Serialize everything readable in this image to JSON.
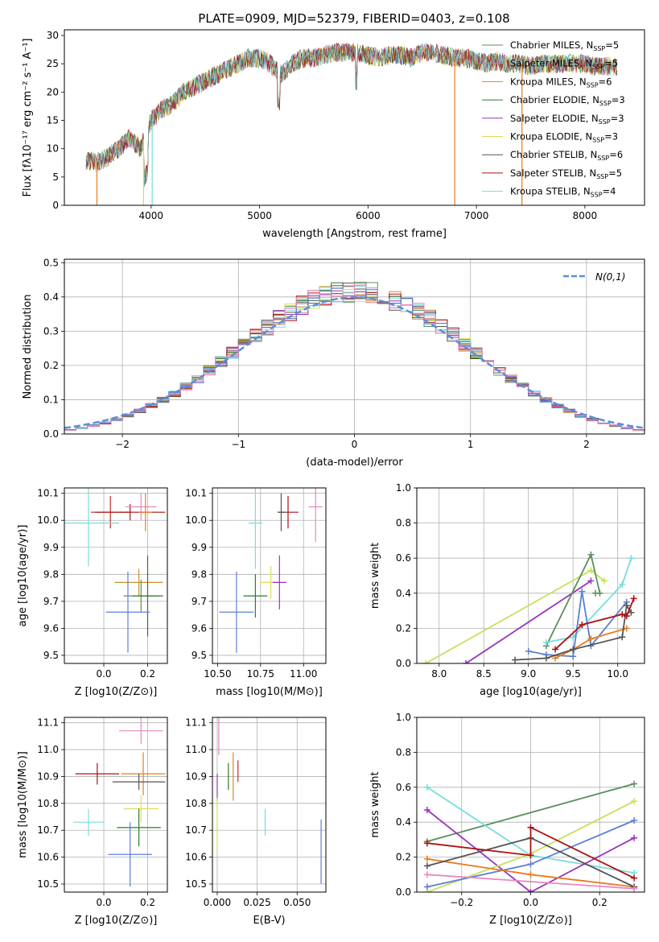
{
  "figure_title": "PLATE=0909, MJD=52379, FIBERID=0403, z=0.108",
  "colors": [
    "#5b8f5b",
    "#e07f7a",
    "#c98f2a",
    "#2e7a2e",
    "#9933bb",
    "#dddd55",
    "#555555",
    "#aa1111",
    "#77dddd"
  ],
  "chart_data": [
    {
      "id": "spectrum",
      "type": "line",
      "title": "PLATE=0909, MJD=52379, FIBERID=0403, z=0.108",
      "xlabel": "wavelength [Angstrom, rest frame]",
      "ylabel": "Flux [fλ10⁻¹⁷ erg cm⁻² s⁻¹ A⁻¹]",
      "xlim": [
        3200,
        8550
      ],
      "ylim": [
        0,
        31
      ],
      "xticks": [
        "4000",
        "5000",
        "6000",
        "7000",
        "8000"
      ],
      "yticks": [
        "0",
        "5",
        "10",
        "15",
        "20",
        "25",
        "30"
      ],
      "legend_position": "right",
      "series": [
        {
          "name": "Chabrier MILES, N_SSP=5",
          "color": "#5b8f5b"
        },
        {
          "name": "Salpeter MILES, N_SSP=5",
          "color": "#e07f7a"
        },
        {
          "name": "Kroupa MILES, N_SSP=6",
          "color": "#c98f2a"
        },
        {
          "name": "Chabrier ELODIE, N_SSP=3",
          "color": "#2e7a2e"
        },
        {
          "name": "Salpeter ELODIE, N_SSP=3",
          "color": "#9933bb"
        },
        {
          "name": "Kroupa ELODIE, N_SSP=3",
          "color": "#dddd55"
        },
        {
          "name": "Chabrier STELIB, N_SSP=6",
          "color": "#555555"
        },
        {
          "name": "Salpeter STELIB, N_SSP=5",
          "color": "#aa1111"
        },
        {
          "name": "Kroupa STELIB, N_SSP=4",
          "color": "#77dddd"
        }
      ],
      "continuum": {
        "x": [
          3400,
          3500,
          3600,
          3700,
          3800,
          3900,
          4000,
          4100,
          4200,
          4300,
          4400,
          4500,
          4600,
          4700,
          4800,
          4900,
          5000,
          5100,
          5200,
          5300,
          5400,
          5500,
          5600,
          5700,
          5800,
          5900,
          6000,
          6100,
          6200,
          6300,
          6400,
          6500,
          6600,
          6700,
          6800,
          6900,
          7000,
          7100,
          7200,
          7300,
          7400,
          7500,
          7600,
          7700,
          7800,
          7900,
          8000,
          8100,
          8200,
          8300
        ],
        "y": [
          8,
          7.5,
          8.5,
          10,
          12,
          10,
          15,
          17,
          18,
          20,
          21,
          22,
          23,
          24,
          25,
          26,
          26,
          25,
          23,
          25,
          26,
          26,
          26.5,
          27,
          27,
          27,
          26.5,
          26,
          26.5,
          26.5,
          26,
          27,
          27,
          26.5,
          26,
          26,
          25.5,
          25,
          25.5,
          25,
          25,
          24.5,
          25,
          25,
          25,
          25,
          25,
          24.5,
          24.5,
          24.5
        ]
      }
    },
    {
      "id": "residuals",
      "type": "histogram",
      "xlabel": "(data-model)/error",
      "ylabel": "Normed distribution",
      "xlim": [
        -2.5,
        2.5
      ],
      "ylim": [
        0,
        0.51
      ],
      "xticks": [
        "−2",
        "−1",
        "0",
        "1",
        "2"
      ],
      "yticks": [
        "0.0",
        "0.1",
        "0.2",
        "0.3",
        "0.4",
        "0.5"
      ],
      "legend": "N(0,1)",
      "legend_position": "top-right"
    },
    {
      "id": "age-vs-Z",
      "type": "scatter",
      "xlabel": "Z [log10(Z/Z⊙)]",
      "ylabel": "age  [log10(age/yr)]",
      "xlim": [
        -0.18,
        0.29
      ],
      "ylim": [
        9.47,
        10.12
      ],
      "xticks": [
        "0.0",
        "0.2"
      ],
      "yticks": [
        "9.5",
        "9.6",
        "9.7",
        "9.8",
        "9.9",
        "10.0",
        "10.1"
      ],
      "points": [
        {
          "x": 0.03,
          "y": 10.03,
          "xerr": 0.09,
          "yerr": 0.06,
          "color": "#c62828"
        },
        {
          "x": 0.12,
          "y": 10.03,
          "xerr": 0.16,
          "yerr": 0.03,
          "color": "#aa1111"
        },
        {
          "x": 0.17,
          "y": 10.05,
          "xerr": 0.07,
          "yerr": 0.05,
          "color": "#e887c0"
        },
        {
          "x": 0.19,
          "y": 10.03,
          "xerr": 0.03,
          "yerr": 0.07,
          "color": "#e87c1e"
        },
        {
          "x": -0.07,
          "y": 9.99,
          "xerr": 0.14,
          "yerr": 0.16,
          "color": "#77dddd"
        },
        {
          "x": 0.16,
          "y": 9.77,
          "xerr": 0.11,
          "yerr": 0.05,
          "color": "#c98f2a"
        },
        {
          "x": 0.17,
          "y": 9.72,
          "xerr": 0.08,
          "yerr": 0.06,
          "color": "#5b8f5b"
        },
        {
          "x": 0.2,
          "y": 9.72,
          "xerr": 0.07,
          "yerr": 0.15,
          "color": "#2e7a2e"
        },
        {
          "x": 0.11,
          "y": 9.66,
          "xerr": 0.1,
          "yerr": 0.15,
          "color": "#5b7fd6"
        }
      ]
    },
    {
      "id": "age-vs-mass",
      "type": "scatter",
      "xlabel": "mass [log10(M/M⊙)]",
      "ylabel": "",
      "xlim": [
        10.47,
        11.13
      ],
      "ylim": [
        9.47,
        10.12
      ],
      "xticks": [
        "10.50",
        "10.75",
        "11.00"
      ],
      "yticks": [
        "9.5",
        "9.6",
        "9.7",
        "9.8",
        "9.9",
        "10.0",
        "10.1"
      ],
      "points": [
        {
          "x": 10.91,
          "y": 10.03,
          "xerr": 0.06,
          "yerr": 0.06,
          "color": "#aa1111"
        },
        {
          "x": 10.87,
          "y": 10.03,
          "xerr": 0.02,
          "yerr": 0.07,
          "color": "#555555"
        },
        {
          "x": 11.07,
          "y": 10.05,
          "xerr": 0.04,
          "yerr": 0.13,
          "color": "#e887c0"
        },
        {
          "x": 10.72,
          "y": 9.99,
          "xerr": 0.04,
          "yerr": 0.17,
          "color": "#77dddd"
        },
        {
          "x": 10.81,
          "y": 9.77,
          "xerr": 0.06,
          "yerr": 0.06,
          "color": "#dddd55"
        },
        {
          "x": 10.86,
          "y": 9.77,
          "xerr": 0.04,
          "yerr": 0.1,
          "color": "#9933bb"
        },
        {
          "x": 10.72,
          "y": 9.72,
          "xerr": 0.07,
          "yerr": 0.08,
          "color": "#2e7a2e"
        },
        {
          "x": 10.61,
          "y": 9.66,
          "xerr": 0.1,
          "yerr": 0.15,
          "color": "#5b7fd6"
        }
      ]
    },
    {
      "id": "weight-vs-age",
      "type": "line",
      "xlabel": "age  [log10(age/yr)]",
      "ylabel": "mass weight",
      "xlim": [
        7.75,
        10.3
      ],
      "ylim": [
        0,
        1.0
      ],
      "xticks": [
        "8.0",
        "8.5",
        "9.0",
        "9.5",
        "10.0"
      ],
      "yticks": [
        "0.0",
        "0.2",
        "0.4",
        "0.6",
        "0.8",
        "1.0"
      ],
      "series": [
        {
          "color": "#c8e05a",
          "x": [
            7.85,
            9.7,
            9.85
          ],
          "y": [
            0.0,
            0.53,
            0.47
          ]
        },
        {
          "color": "#9933bb",
          "x": [
            8.3,
            9.7
          ],
          "y": [
            0.0,
            0.47
          ]
        },
        {
          "color": "#5b8f5b",
          "x": [
            9.2,
            9.7,
            9.8,
            9.75
          ],
          "y": [
            0.1,
            0.62,
            0.4,
            0.4
          ]
        },
        {
          "color": "#77dddd",
          "x": [
            9.2,
            9.5,
            10.05,
            10.15
          ],
          "y": [
            0.12,
            0.15,
            0.45,
            0.6
          ]
        },
        {
          "color": "#5b7fd6",
          "x": [
            9.0,
            9.2,
            9.5,
            9.6,
            9.7,
            10.1
          ],
          "y": [
            0.07,
            0.05,
            0.04,
            0.41,
            0.1,
            0.35
          ]
        },
        {
          "color": "#e87c1e",
          "x": [
            9.3,
            9.5,
            9.7,
            10.1
          ],
          "y": [
            0.03,
            0.08,
            0.14,
            0.2
          ]
        },
        {
          "color": "#555555",
          "x": [
            8.85,
            9.2,
            9.5,
            10.05,
            10.1,
            10.15
          ],
          "y": [
            0.02,
            0.03,
            0.08,
            0.15,
            0.33,
            0.29
          ]
        },
        {
          "color": "#aa1111",
          "x": [
            9.3,
            9.6,
            10.05,
            10.1,
            10.18
          ],
          "y": [
            0.08,
            0.22,
            0.28,
            0.27,
            0.37
          ]
        }
      ]
    },
    {
      "id": "mass-vs-Z",
      "type": "scatter",
      "xlabel": "Z [log10(Z/Z⊙)]",
      "ylabel": "mass [log10(M/M⊙)]",
      "xlim": [
        -0.18,
        0.29
      ],
      "ylim": [
        10.47,
        11.12
      ],
      "xticks": [
        "0.0",
        "0.2"
      ],
      "yticks": [
        "10.5",
        "10.6",
        "10.7",
        "10.8",
        "10.9",
        "11.0",
        "11.1"
      ],
      "points": [
        {
          "x": 0.17,
          "y": 11.07,
          "xerr": 0.1,
          "yerr": 0.05,
          "color": "#e887c0"
        },
        {
          "x": -0.03,
          "y": 10.91,
          "xerr": 0.1,
          "yerr": 0.04,
          "color": "#aa1111"
        },
        {
          "x": 0.18,
          "y": 10.91,
          "xerr": 0.1,
          "yerr": 0.08,
          "color": "#e87c1e"
        },
        {
          "x": 0.16,
          "y": 10.88,
          "xerr": 0.12,
          "yerr": 0.03,
          "color": "#555555"
        },
        {
          "x": 0.17,
          "y": 10.78,
          "xerr": 0.08,
          "yerr": 0.05,
          "color": "#dddd55"
        },
        {
          "x": -0.07,
          "y": 10.73,
          "xerr": 0.07,
          "yerr": 0.05,
          "color": "#77dddd"
        },
        {
          "x": 0.16,
          "y": 10.71,
          "xerr": 0.1,
          "yerr": 0.07,
          "color": "#2e7a2e"
        },
        {
          "x": 0.12,
          "y": 10.61,
          "xerr": 0.1,
          "yerr": 0.12,
          "color": "#5b7fd6"
        }
      ]
    },
    {
      "id": "mass-vs-EBV",
      "type": "scatter",
      "xlabel": "E(B-V)",
      "ylabel": "",
      "xlim": [
        -0.003,
        0.068
      ],
      "ylim": [
        10.47,
        11.12
      ],
      "xticks": [
        "0.000",
        "0.025",
        "0.050"
      ],
      "yticks": [
        "10.5",
        "10.6",
        "10.7",
        "10.8",
        "10.9",
        "11.0",
        "11.1"
      ],
      "points": [
        {
          "x": 0.001,
          "y": 11.05,
          "xerr": 0,
          "yerr": 0.07,
          "color": "#e887c0"
        },
        {
          "x": 0.0,
          "y": 10.86,
          "xerr": 0,
          "yerr": 0.05,
          "color": "#9933bb"
        },
        {
          "x": 0.0,
          "y": 10.72,
          "xerr": 0,
          "yerr": 0.1,
          "color": "#dddd55"
        },
        {
          "x": 0.007,
          "y": 10.9,
          "xerr": 0,
          "yerr": 0.05,
          "color": "#2e7a2e"
        },
        {
          "x": 0.01,
          "y": 10.9,
          "xerr": 0,
          "yerr": 0.09,
          "color": "#c98f2a"
        },
        {
          "x": 0.013,
          "y": 10.92,
          "xerr": 0,
          "yerr": 0.04,
          "color": "#c62828"
        },
        {
          "x": 0.03,
          "y": 10.73,
          "xerr": 0,
          "yerr": 0.05,
          "color": "#77dddd"
        },
        {
          "x": 0.065,
          "y": 10.62,
          "xerr": 0,
          "yerr": 0.12,
          "color": "#5b7fd6"
        }
      ]
    },
    {
      "id": "weight-vs-Z",
      "type": "line",
      "xlabel": "Z [log10(Z/Z⊙)]",
      "ylabel": "mass weight",
      "xlim": [
        -0.33,
        0.33
      ],
      "ylim": [
        0,
        1.0
      ],
      "xticks": [
        "−0.2",
        "0.0",
        "0.2"
      ],
      "yticks": [
        "0.0",
        "0.2",
        "0.4",
        "0.6",
        "0.8",
        "1.0"
      ],
      "series": [
        {
          "color": "#5b8f5b",
          "x": [
            -0.3,
            0.3
          ],
          "y": [
            0.29,
            0.62
          ]
        },
        {
          "color": "#77dddd",
          "x": [
            -0.3,
            0.0,
            0.3
          ],
          "y": [
            0.6,
            0.21,
            0.11
          ]
        },
        {
          "color": "#9933bb",
          "x": [
            -0.3,
            0.0,
            0.3
          ],
          "y": [
            0.47,
            0.0,
            0.31
          ]
        },
        {
          "color": "#c8e05a",
          "x": [
            -0.3,
            0.0,
            0.3
          ],
          "y": [
            0.0,
            0.22,
            0.52
          ]
        },
        {
          "color": "#5b7fd6",
          "x": [
            -0.3,
            0.0,
            0.3
          ],
          "y": [
            0.03,
            0.16,
            0.41
          ]
        },
        {
          "color": "#e87c1e",
          "x": [
            -0.3,
            0.0,
            0.3
          ],
          "y": [
            0.19,
            0.1,
            0.03
          ]
        },
        {
          "color": "#555555",
          "x": [
            -0.3,
            0.0,
            0.3
          ],
          "y": [
            0.15,
            0.31,
            0.03
          ]
        },
        {
          "color": "#aa1111",
          "x": [
            -0.3,
            0.0,
            0.0,
            0.3
          ],
          "y": [
            0.28,
            0.21,
            0.37,
            0.08
          ]
        },
        {
          "color": "#e887c0",
          "x": [
            -0.3,
            0.3
          ],
          "y": [
            0.1,
            0.02
          ]
        }
      ]
    }
  ]
}
